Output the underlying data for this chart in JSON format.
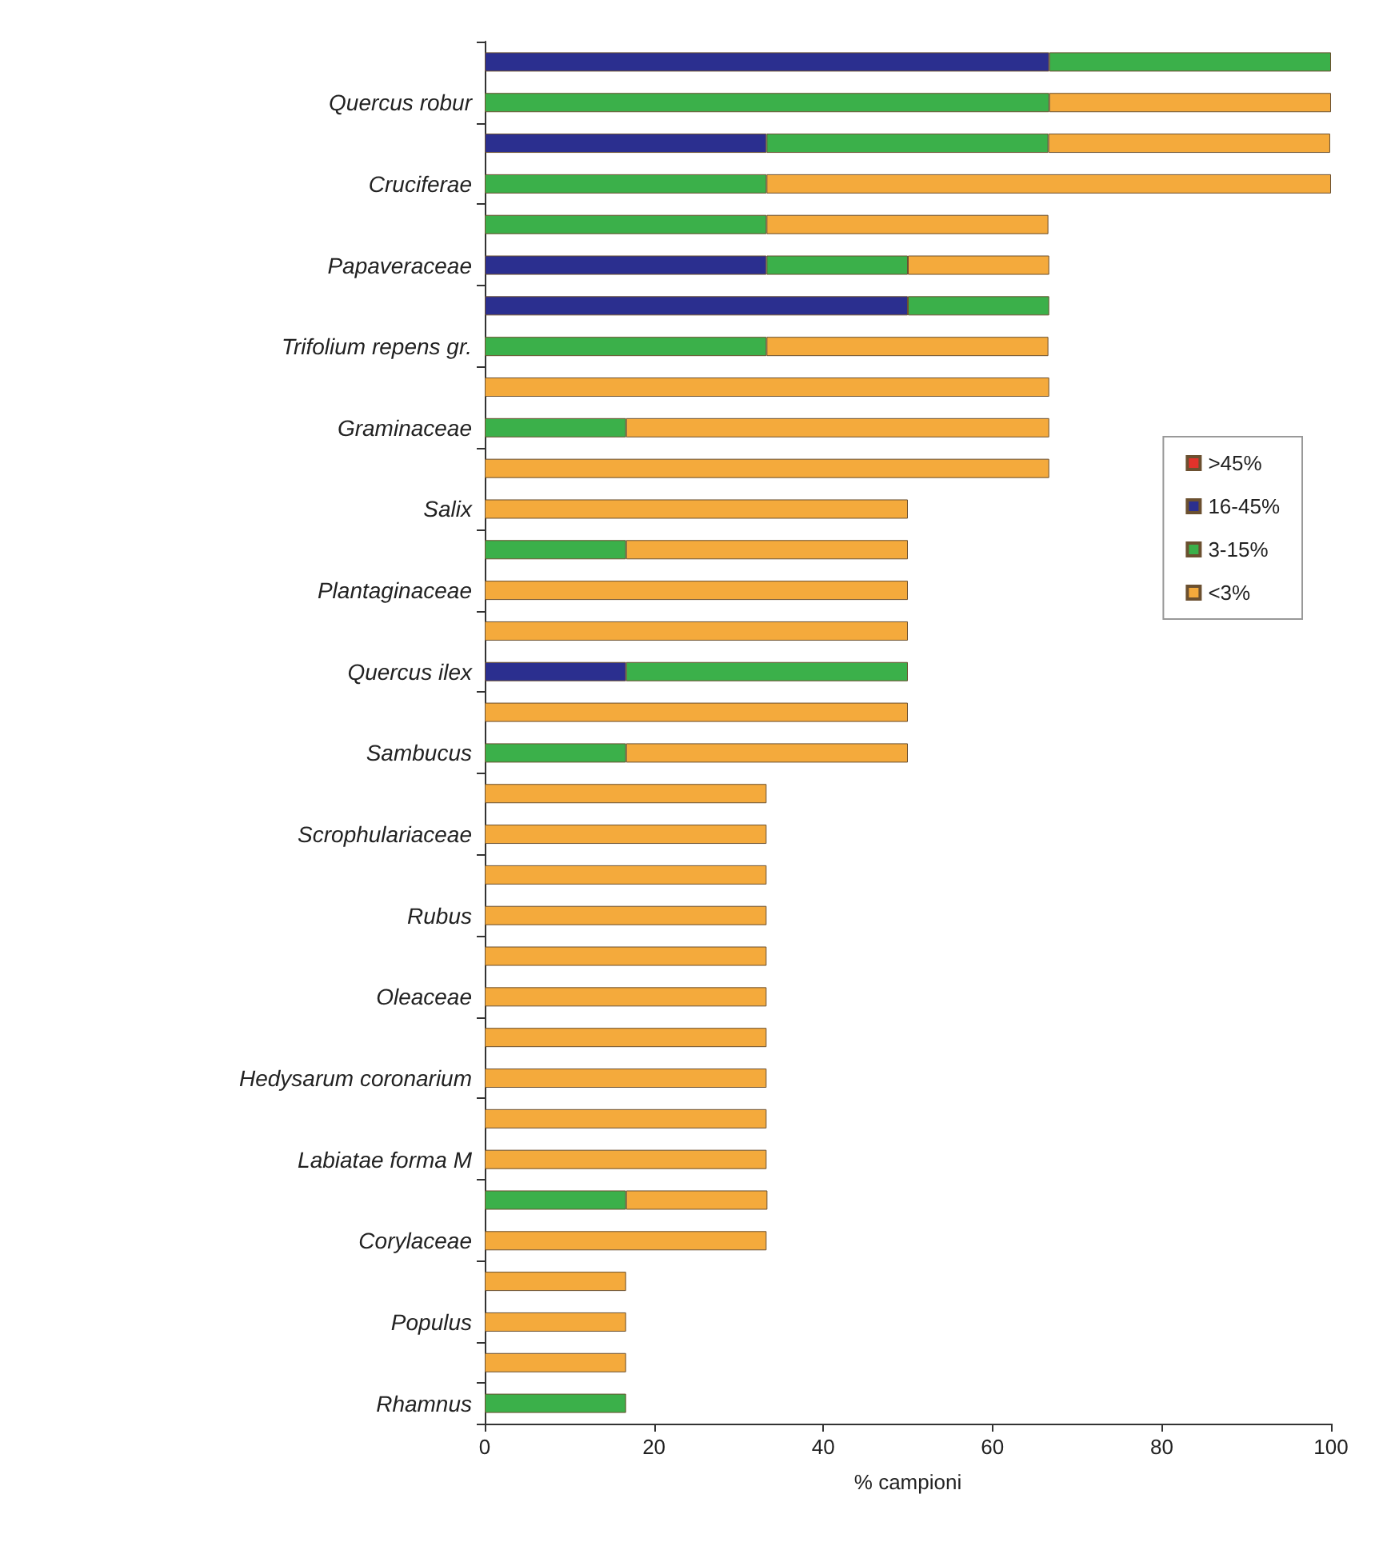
{
  "chart_data": {
    "type": "bar",
    "orientation": "horizontal",
    "stacked": true,
    "xlabel": "% campioni",
    "xlim": [
      0,
      100
    ],
    "xticks": [
      0,
      20,
      40,
      60,
      80,
      100
    ],
    "grid": false,
    "legend": "right",
    "categories": [
      null,
      "Quercus robur",
      null,
      "Cruciferae",
      null,
      "Papaveraceae",
      null,
      "Trifolium repens gr.",
      null,
      "Graminaceae",
      null,
      "Salix",
      null,
      "Plantaginaceae",
      null,
      "Quercus ilex",
      null,
      "Sambucus",
      null,
      "Scrophulariaceae",
      null,
      "Rubus",
      null,
      "Oleaceae",
      null,
      "Hedysarum coronarium",
      null,
      "Labiatae forma M",
      null,
      "Corylaceae",
      null,
      "Populus",
      null,
      "Rhamnus"
    ],
    "series": [
      {
        "name": ">45%",
        "color": "#e2322b",
        "values": [
          null,
          null,
          null,
          null,
          null,
          null,
          null,
          null,
          null,
          null,
          null,
          null,
          null,
          null,
          null,
          null,
          null,
          null,
          null,
          null,
          null,
          null,
          null,
          null,
          null,
          null,
          null,
          null,
          null,
          null,
          null,
          null,
          null,
          null
        ]
      },
      {
        "name": "16-45%",
        "color": "#2b2f8f",
        "values": [
          66.7,
          null,
          33.3,
          null,
          null,
          33.3,
          50,
          null,
          null,
          null,
          null,
          null,
          null,
          null,
          null,
          16.7,
          null,
          null,
          null,
          null,
          null,
          null,
          null,
          null,
          null,
          null,
          null,
          null,
          null,
          null,
          null,
          null,
          null,
          null
        ]
      },
      {
        "name": "3-15%",
        "color": "#3bb04a",
        "values": [
          33.3,
          66.7,
          33.3,
          33.3,
          33.3,
          16.7,
          16.7,
          33.3,
          null,
          16.7,
          null,
          null,
          16.7,
          null,
          null,
          33.3,
          null,
          16.7,
          null,
          null,
          null,
          null,
          null,
          null,
          null,
          null,
          null,
          null,
          16.7,
          null,
          null,
          null,
          null,
          16.7
        ]
      },
      {
        "name": "<3%",
        "color": "#f4aa3c",
        "values": [
          null,
          33.3,
          33.3,
          66.7,
          33.3,
          16.7,
          null,
          33.3,
          66.7,
          50,
          66.7,
          50,
          33.3,
          50,
          50,
          null,
          50,
          33.3,
          33.3,
          33.3,
          33.3,
          33.3,
          33.3,
          33.3,
          33.3,
          33.3,
          33.3,
          33.3,
          16.7,
          33.3,
          16.7,
          16.7,
          16.7,
          null
        ]
      }
    ]
  }
}
